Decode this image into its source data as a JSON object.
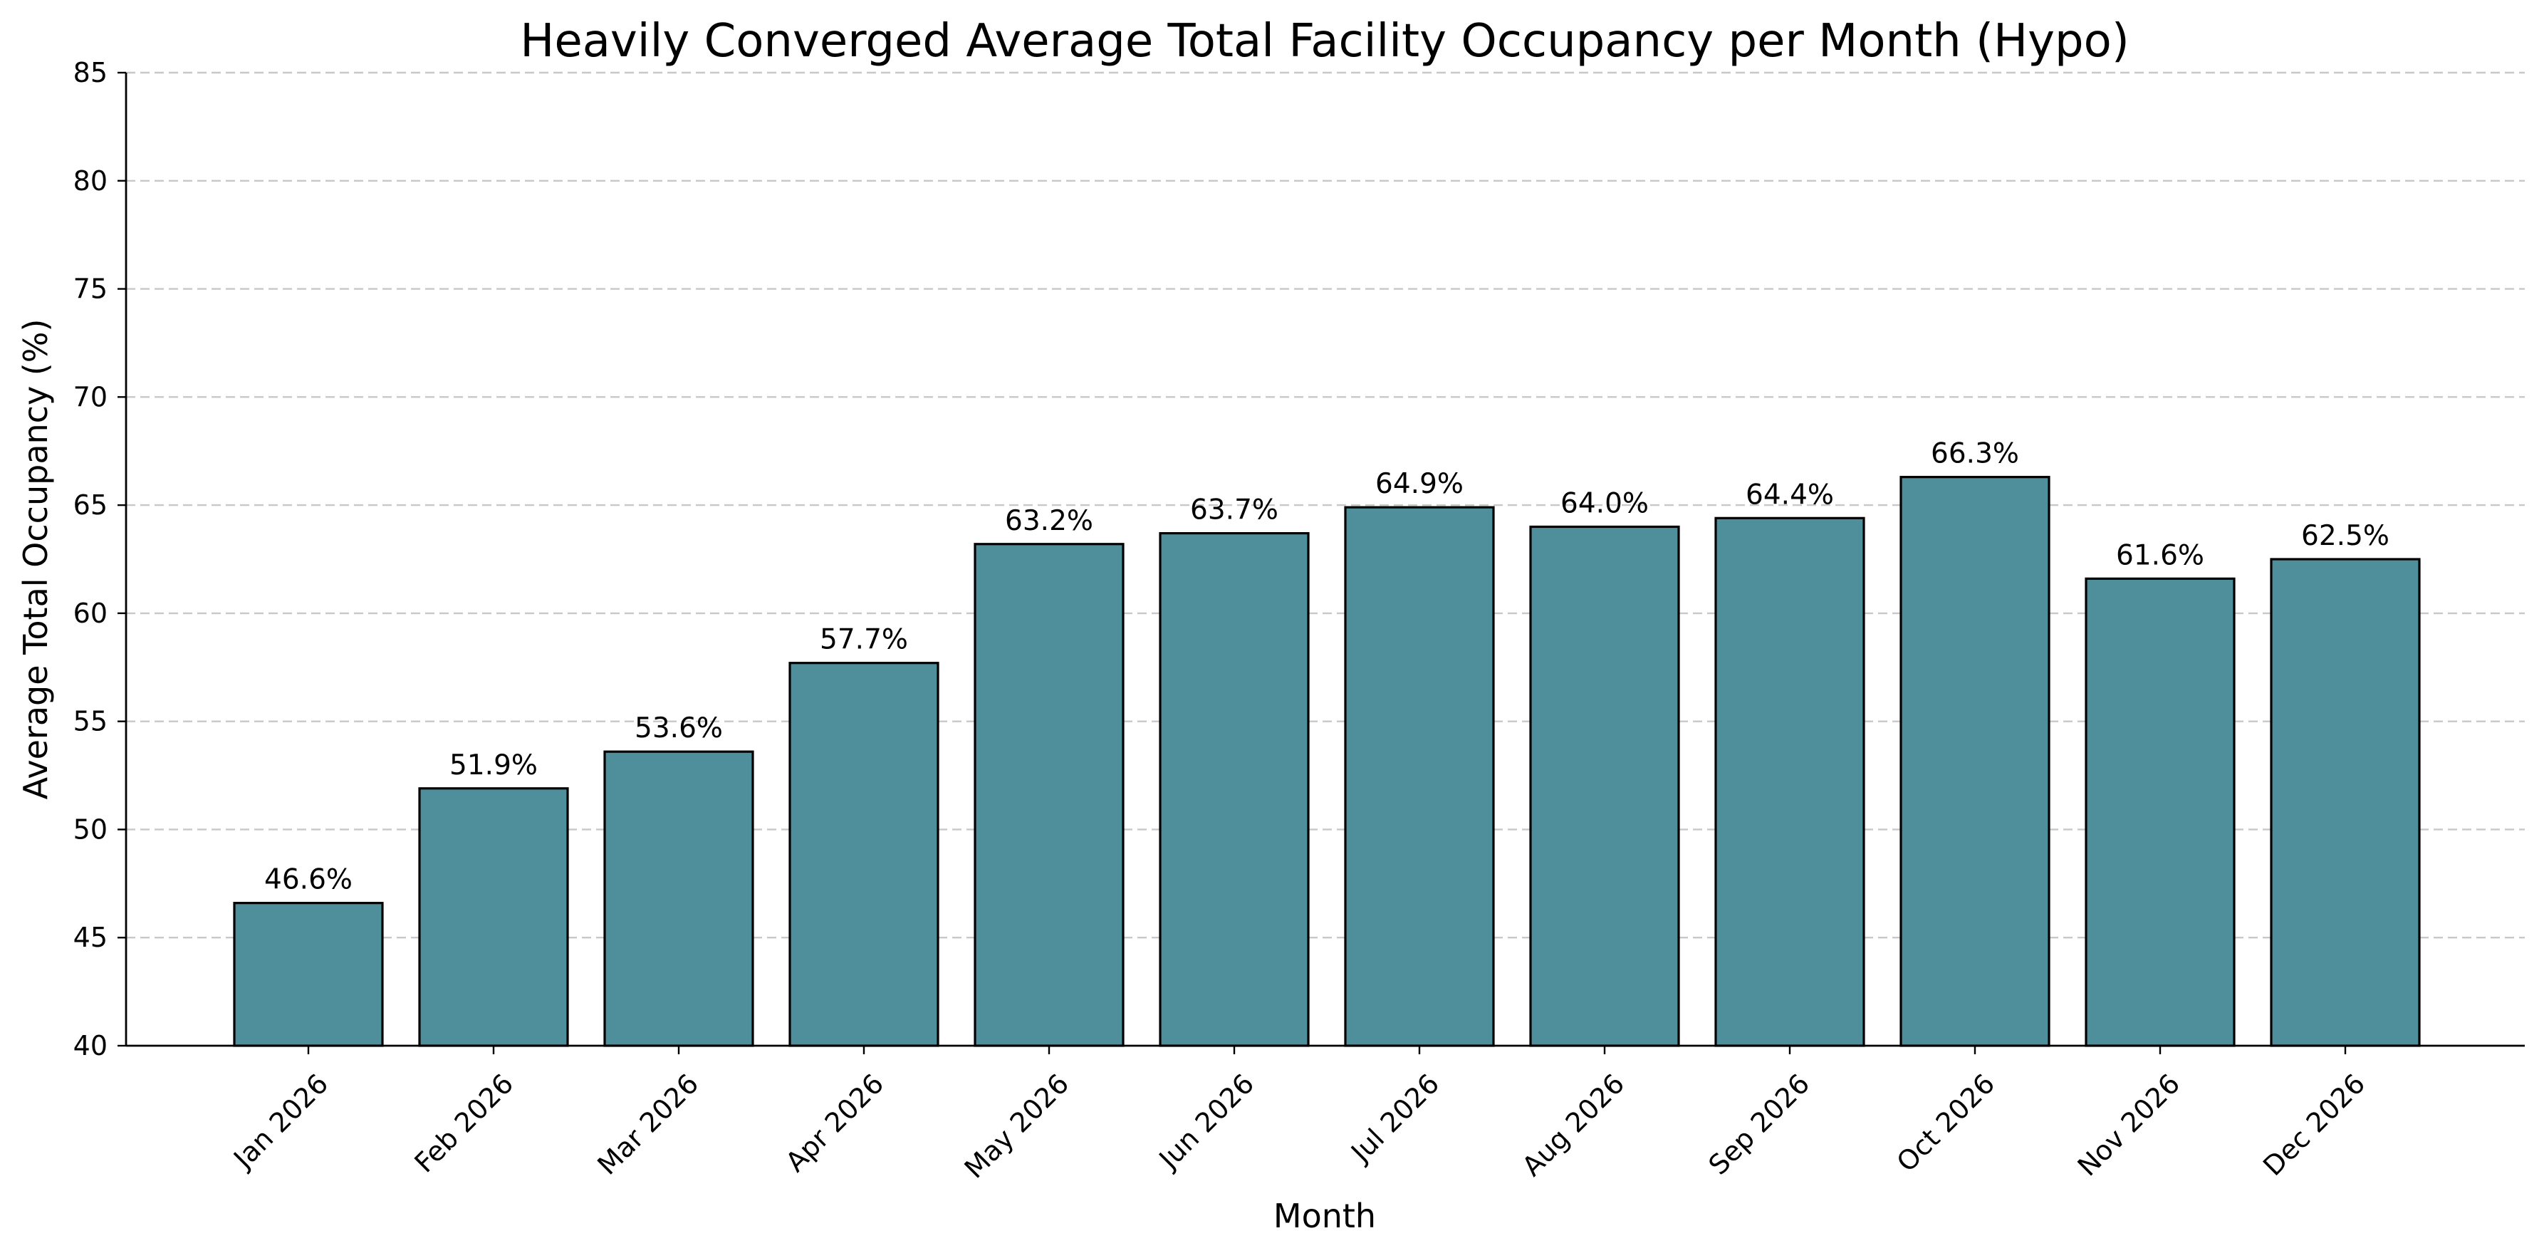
{
  "chart_data": {
    "type": "bar",
    "title": "Heavily Converged Average Total Facility Occupancy per Month (Hypo)",
    "xlabel": "Month",
    "ylabel": "Average Total Occupancy (%)",
    "categories": [
      "Jan 2026",
      "Feb 2026",
      "Mar 2026",
      "Apr 2026",
      "May 2026",
      "Jun 2026",
      "Jul 2026",
      "Aug 2026",
      "Sep 2026",
      "Oct 2026",
      "Nov 2026",
      "Dec 2026"
    ],
    "values": [
      46.6,
      51.9,
      53.6,
      57.7,
      63.2,
      63.7,
      64.9,
      64.0,
      64.4,
      66.3,
      61.6,
      62.5
    ],
    "value_labels": [
      "46.6%",
      "51.9%",
      "53.6%",
      "57.7%",
      "63.2%",
      "63.7%",
      "64.9%",
      "64.0%",
      "64.4%",
      "66.3%",
      "61.6%",
      "62.5%"
    ],
    "ylim": [
      40,
      85
    ],
    "yticks": [
      40,
      45,
      50,
      55,
      60,
      65,
      70,
      75,
      80,
      85
    ],
    "grid": "y-dashed",
    "legend": "none",
    "bar_color": "#4f8f9c",
    "bar_edge_color": "#000000"
  }
}
